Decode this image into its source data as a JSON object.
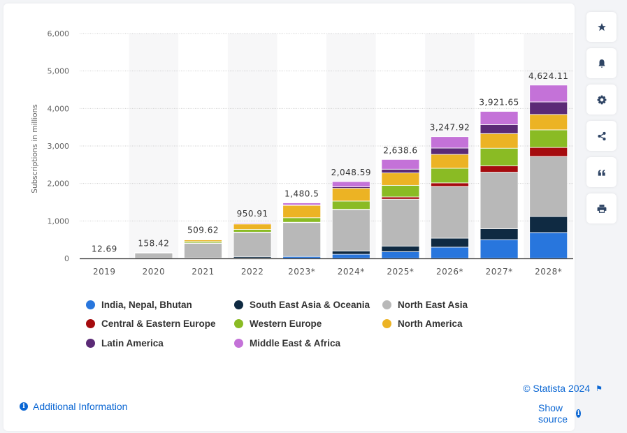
{
  "chart_data": {
    "type": "bar",
    "stacked": true,
    "title": "",
    "xlabel": "",
    "ylabel": "Subscriptions in millions",
    "ylim": [
      0,
      6000
    ],
    "yticks": [
      0,
      1000,
      2000,
      3000,
      4000,
      5000,
      6000
    ],
    "ytick_labels": [
      "0",
      "1,000",
      "2,000",
      "3,000",
      "4,000",
      "5,000",
      "6,000"
    ],
    "grid": true,
    "legend_position": "bottom",
    "categories": [
      "2019",
      "2020",
      "2021",
      "2022",
      "2023*",
      "2024*",
      "2025*",
      "2026*",
      "2027*",
      "2028*"
    ],
    "totals": [
      12.69,
      158.42,
      509.62,
      950.91,
      1480.5,
      2048.59,
      2638.6,
      3247.92,
      3921.65,
      4624.11
    ],
    "total_labels": [
      "12.69",
      "158.42",
      "509.62",
      "950.91",
      "1,480.5",
      "2,048.59",
      "2,638.6",
      "3,247.92",
      "3,921.65",
      "4,624.11"
    ],
    "series": [
      {
        "name": "India, Nepal, Bhutan",
        "color": "#2876dd",
        "values": [
          0,
          0,
          2,
          10,
          50,
          110,
          180,
          300,
          500,
          690
        ]
      },
      {
        "name": "South East Asia & Oceania",
        "color": "#0f2a42",
        "values": [
          0,
          2,
          8,
          40,
          30,
          90,
          150,
          240,
          290,
          430
        ]
      },
      {
        "name": "North East Asia",
        "color": "#b8b8b8",
        "values": [
          12.69,
          150,
          400,
          650,
          880,
          1100,
          1250,
          1380,
          1510,
          1600
        ]
      },
      {
        "name": "Central & Eastern Europe",
        "color": "#a50b0e",
        "values": [
          0,
          0,
          1,
          2,
          5,
          10,
          60,
          95,
          170,
          240
        ]
      },
      {
        "name": "Western Europe",
        "color": "#8abb24",
        "values": [
          0,
          2,
          40,
          70,
          120,
          220,
          310,
          390,
          470,
          470
        ]
      },
      {
        "name": "North America",
        "color": "#ecb324",
        "values": [
          0,
          4.42,
          50,
          150,
          330,
          340,
          330,
          370,
          390,
          410
        ]
      },
      {
        "name": "Latin America",
        "color": "#5b2a76",
        "values": [
          0,
          0,
          2.62,
          5,
          10,
          40,
          100,
          170,
          240,
          335
        ]
      },
      {
        "name": "Middle East & Africa",
        "color": "#c472d8",
        "values": [
          0,
          0,
          6,
          23.91,
          55.5,
          138.59,
          258.6,
          302.92,
          351.65,
          449.11
        ]
      }
    ]
  },
  "toolbar": {
    "buttons": [
      {
        "name": "favorite",
        "icon": "star-icon"
      },
      {
        "name": "notification",
        "icon": "bell-icon"
      },
      {
        "name": "settings",
        "icon": "gear-icon"
      },
      {
        "name": "share",
        "icon": "share-icon"
      },
      {
        "name": "cite",
        "icon": "quote-icon"
      },
      {
        "name": "print",
        "icon": "print-icon"
      }
    ]
  },
  "footer": {
    "additional_info": "Additional Information",
    "credit": "© Statista 2024",
    "show_source": "Show source"
  }
}
